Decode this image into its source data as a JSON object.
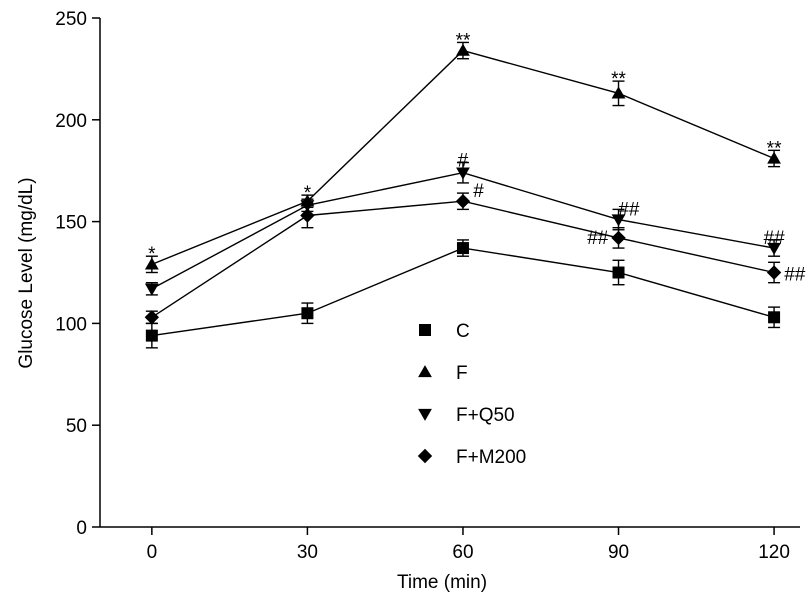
{
  "chart_data": {
    "type": "line",
    "title": "",
    "xlabel": "Time (min)",
    "ylabel": "Glucose Level (mg/dL)",
    "x": [
      0,
      30,
      60,
      90,
      120
    ],
    "xlim": [
      -10,
      125
    ],
    "ylim": [
      0,
      250
    ],
    "x_ticks": [
      "0",
      "30",
      "60",
      "90",
      "120"
    ],
    "y_ticks": [
      "0",
      "50",
      "100",
      "150",
      "200",
      "250"
    ],
    "grid": false,
    "legend_position": "center",
    "marker_color": "#000000",
    "series": [
      {
        "name": "C",
        "marker": "square",
        "values": [
          94,
          105,
          137,
          125,
          103
        ],
        "errors": [
          6,
          5,
          4,
          6,
          5
        ]
      },
      {
        "name": "F",
        "marker": "triangle-up",
        "values": [
          129,
          160,
          234,
          213,
          181
        ],
        "errors": [
          4,
          3,
          4,
          6,
          4
        ]
      },
      {
        "name": "F+Q50",
        "marker": "triangle-down",
        "values": [
          117,
          158,
          174,
          151,
          137
        ],
        "errors": [
          3,
          3,
          5,
          5,
          4
        ]
      },
      {
        "name": "F+M200",
        "marker": "diamond",
        "values": [
          103,
          153,
          160,
          142,
          125
        ],
        "errors": [
          3,
          6,
          4,
          5,
          5
        ]
      }
    ],
    "annotations": [
      {
        "text": "*",
        "x": 0,
        "y": 133
      },
      {
        "text": "*",
        "x": 30,
        "y": 163
      },
      {
        "text": "**",
        "x": 60,
        "y": 238
      },
      {
        "text": "**",
        "x": 90,
        "y": 219
      },
      {
        "text": "**",
        "x": 120,
        "y": 185
      },
      {
        "text": "#",
        "x": 60,
        "y": 179
      },
      {
        "text": "#",
        "x": 63,
        "y": 164
      },
      {
        "text": "##",
        "x": 92,
        "y": 155
      },
      {
        "text": "##",
        "x": 86,
        "y": 141
      },
      {
        "text": "##",
        "x": 120,
        "y": 141
      },
      {
        "text": "##",
        "x": 124,
        "y": 123
      }
    ]
  }
}
